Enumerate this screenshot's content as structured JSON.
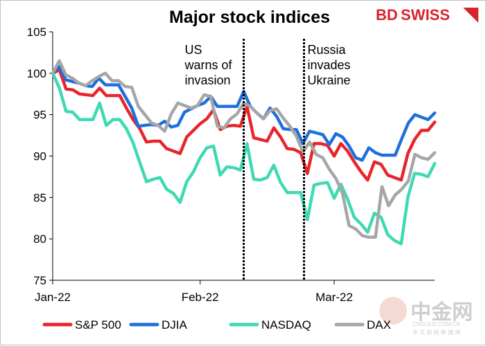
{
  "chart_data": {
    "type": "line",
    "title": "Major stock indices",
    "xlabel": "",
    "ylabel": "",
    "ylim": [
      75,
      105
    ],
    "yticks": [
      75,
      80,
      85,
      90,
      95,
      100,
      105
    ],
    "xlim": [
      0,
      57
    ],
    "xticks": [
      {
        "x": 0,
        "label": "Jan-22"
      },
      {
        "x": 22,
        "label": "Feb-22"
      },
      {
        "x": 42,
        "label": "Mar-22"
      }
    ],
    "legend_position": "bottom",
    "annotations": [
      {
        "x": 28.5,
        "lines": [
          "US",
          "warns of",
          "invasion"
        ]
      },
      {
        "x": 37.5,
        "lines": [
          "Russia",
          "invades",
          "Ukraine"
        ]
      }
    ],
    "series": [
      {
        "name": "S&P 500",
        "color": "#e8252c",
        "values": [
          100,
          100.4,
          98.1,
          98,
          97.5,
          97.4,
          97.3,
          98.2,
          97.3,
          97.3,
          97.3,
          95.8,
          94.4,
          93.3,
          91.7,
          91.8,
          91.8,
          90.9,
          90.6,
          90.3,
          92.3,
          93.1,
          93.9,
          94.5,
          95.6,
          93.2,
          93.6,
          93.7,
          93.6,
          96,
          92.2,
          92,
          91.8,
          93.4,
          92.3,
          90.9,
          90.8,
          90.4,
          87.9,
          91.5,
          91.5,
          91.3,
          90,
          91.5,
          90.6,
          89.3,
          88.1,
          87.1,
          89.3,
          89,
          87.7,
          87.4,
          87.1,
          90.3,
          92,
          93.1,
          93.1,
          94.1
        ]
      },
      {
        "name": "DJIA",
        "color": "#1f6fdd",
        "values": [
          100,
          100.8,
          99.2,
          99,
          98.8,
          98.5,
          98.4,
          99.4,
          98.6,
          98.6,
          98.6,
          97.2,
          95.8,
          93.6,
          93.7,
          93.8,
          93.7,
          94.2,
          93.5,
          93.7,
          95.3,
          95.7,
          96.1,
          96.4,
          97.2,
          96,
          96,
          96,
          96,
          97.8,
          96,
          95.2,
          94.5,
          95.8,
          94.8,
          93.3,
          93.2,
          93.2,
          91.5,
          93,
          92.8,
          92.6,
          91.4,
          92.7,
          92.3,
          91.2,
          89.8,
          89.5,
          91,
          90.4,
          90.1,
          90.1,
          90.1,
          92.1,
          94,
          95,
          94.7,
          94.4,
          95.2
        ]
      },
      {
        "name": "NASDAQ",
        "color": "#3fd9b4",
        "values": [
          100,
          98.2,
          95.4,
          95.3,
          94.4,
          94.4,
          94.4,
          96.4,
          93.7,
          94.4,
          94.4,
          93.3,
          91.6,
          89.2,
          86.9,
          87.2,
          87.4,
          86,
          85.5,
          84.4,
          86.9,
          88.1,
          89.8,
          91,
          91.2,
          87.7,
          88.7,
          88.6,
          88.3,
          91.5,
          87.2,
          87.1,
          87.4,
          88.9,
          86.8,
          85.6,
          85.6,
          85.6,
          82.3,
          86.5,
          86.7,
          86.8,
          84.9,
          86.6,
          84.8,
          82.6,
          81.8,
          80.8,
          83.1,
          82.6,
          80.5,
          79.8,
          79.4,
          85,
          87.9,
          87.8,
          87.5,
          89.1
        ]
      },
      {
        "name": "DAX",
        "color": "#a6a6a6",
        "values": [
          100,
          101.5,
          99.8,
          99.4,
          98.8,
          98.5,
          99.1,
          99.6,
          100,
          99.1,
          99.1,
          98.4,
          98.3,
          96,
          95,
          94,
          93.7,
          93,
          95.1,
          96.4,
          96.1,
          95.8,
          96.1,
          97.4,
          97.2,
          93.6,
          93.4,
          94.5,
          95.1,
          96.4,
          96,
          95.2,
          94.5,
          95.5,
          95.7,
          94.6,
          93.6,
          92.4,
          90.5,
          91.7,
          90.2,
          89.8,
          88.4,
          87.3,
          85.5,
          81.6,
          81.2,
          80.4,
          80.2,
          80.2,
          86.3,
          84,
          85.3,
          86,
          87,
          90.2,
          89.8,
          89.6,
          90.4
        ]
      }
    ]
  },
  "branding": {
    "logo_part1": "BD",
    "logo_part2": "SWISS",
    "accent": "#d9232d"
  },
  "watermark": {
    "name": "中金网",
    "url": "CNGOLD.COM.CN",
    "tagline": "中 文 财 经 新 媒 体"
  }
}
